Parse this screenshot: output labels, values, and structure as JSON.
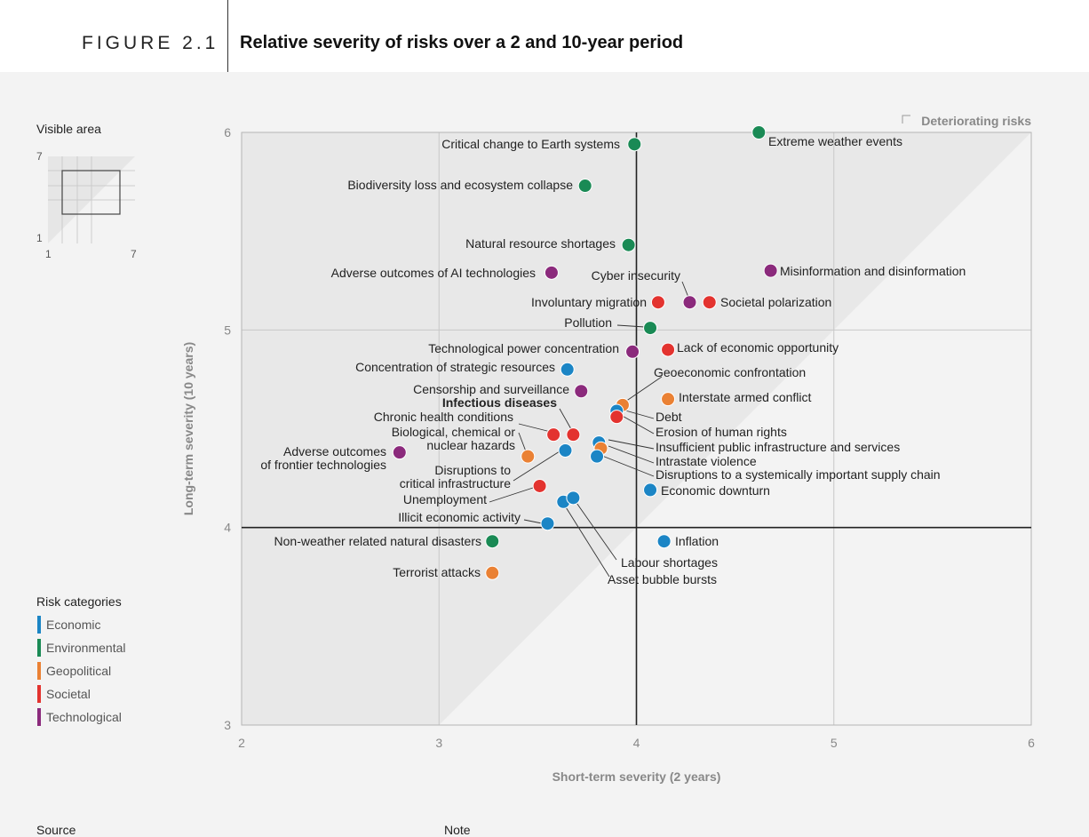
{
  "header": {
    "figure_label": "FIGURE 2.1",
    "title": "Relative severity of risks over a 2 and 10-year period"
  },
  "visible_area": {
    "title": "Visible area",
    "y_max": "7",
    "y_min": "1",
    "x_min": "1",
    "x_max": "7"
  },
  "legend": {
    "title": "Risk categories",
    "items": [
      {
        "label": "Economic",
        "color": "#1b85c5"
      },
      {
        "label": "Environmental",
        "color": "#1a8a55"
      },
      {
        "label": "Geopolitical",
        "color": "#ea8134"
      },
      {
        "label": "Societal",
        "color": "#e3332f"
      },
      {
        "label": "Technological",
        "color": "#8b2a7c"
      }
    ]
  },
  "footer": {
    "source_label": "Source",
    "note_label": "Note"
  },
  "chart_data": {
    "type": "scatter",
    "xlabel": "Short-term severity (2 years)",
    "ylabel": "Long-term severity (10 years)",
    "xlim": [
      2,
      6
    ],
    "ylim": [
      3,
      6
    ],
    "xticks": [
      "2",
      "3",
      "4",
      "5",
      "6"
    ],
    "yticks": [
      "3",
      "4",
      "5",
      "6"
    ],
    "reference_lines": {
      "x": 4,
      "y": 4
    },
    "diagonal_region_label": "Deteriorating risks",
    "grid": true,
    "points": [
      {
        "label": "Extreme weather events",
        "x": 4.62,
        "y": 6.0,
        "category": "Environmental"
      },
      {
        "label": "Critical change to Earth systems",
        "x": 3.99,
        "y": 5.94,
        "category": "Environmental"
      },
      {
        "label": "Biodiversity loss and ecosystem collapse",
        "x": 3.74,
        "y": 5.73,
        "category": "Environmental"
      },
      {
        "label": "Natural resource shortages",
        "x": 3.96,
        "y": 5.43,
        "category": "Environmental"
      },
      {
        "label": "Adverse outcomes of AI technologies",
        "x": 3.57,
        "y": 5.29,
        "category": "Technological"
      },
      {
        "label": "Misinformation and disinformation",
        "x": 4.68,
        "y": 5.3,
        "category": "Technological"
      },
      {
        "label": "Cyber insecurity",
        "x": 4.27,
        "y": 5.14,
        "category": "Technological"
      },
      {
        "label": "Involuntary migration",
        "x": 4.11,
        "y": 5.14,
        "category": "Societal"
      },
      {
        "label": "Societal polarization",
        "x": 4.37,
        "y": 5.14,
        "category": "Societal"
      },
      {
        "label": "Pollution",
        "x": 4.07,
        "y": 5.01,
        "category": "Environmental"
      },
      {
        "label": "Technological power concentration",
        "x": 3.98,
        "y": 4.89,
        "category": "Technological"
      },
      {
        "label": "Lack of economic opportunity",
        "x": 4.16,
        "y": 4.9,
        "category": "Societal"
      },
      {
        "label": "Concentration of strategic resources",
        "x": 3.65,
        "y": 4.8,
        "category": "Economic"
      },
      {
        "label": "Geoeconomic confrontation",
        "x": 3.93,
        "y": 4.62,
        "category": "Geopolitical"
      },
      {
        "label": "Censorship and surveillance",
        "x": 3.72,
        "y": 4.69,
        "category": "Technological"
      },
      {
        "label": "Interstate armed conflict",
        "x": 4.16,
        "y": 4.65,
        "category": "Geopolitical"
      },
      {
        "label": "Infectious diseases",
        "x": 3.68,
        "y": 4.47,
        "category": "Societal"
      },
      {
        "label": "Debt",
        "x": 3.9,
        "y": 4.59,
        "category": "Economic"
      },
      {
        "label": "Chronic health conditions",
        "x": 3.58,
        "y": 4.47,
        "category": "Societal"
      },
      {
        "label": "Erosion of human rights",
        "x": 3.9,
        "y": 4.56,
        "category": "Societal"
      },
      {
        "label": "Biological, chemical or nuclear hazards",
        "x": 3.45,
        "y": 4.36,
        "category": "Geopolitical"
      },
      {
        "label": "Adverse outcomes of frontier technologies",
        "x": 2.8,
        "y": 4.38,
        "category": "Technological"
      },
      {
        "label": "Insufficient public infrastructure and services",
        "x": 3.81,
        "y": 4.43,
        "category": "Economic"
      },
      {
        "label": "Intrastate violence",
        "x": 3.82,
        "y": 4.4,
        "category": "Geopolitical"
      },
      {
        "label": "Disruptions to critical infrastructure",
        "x": 3.64,
        "y": 4.39,
        "category": "Economic"
      },
      {
        "label": "Disruptions to a systemically important supply chain",
        "x": 3.8,
        "y": 4.36,
        "category": "Economic"
      },
      {
        "label": "Economic downturn",
        "x": 4.07,
        "y": 4.19,
        "category": "Economic"
      },
      {
        "label": "Unemployment",
        "x": 3.51,
        "y": 4.21,
        "category": "Societal"
      },
      {
        "label": "Labour shortages",
        "x": 3.63,
        "y": 4.13,
        "category": "Economic"
      },
      {
        "label": "Asset bubble bursts",
        "x": 3.68,
        "y": 4.15,
        "category": "Economic"
      },
      {
        "label": "Illicit economic activity",
        "x": 3.55,
        "y": 4.02,
        "category": "Economic"
      },
      {
        "label": "Non-weather related natural disasters",
        "x": 3.27,
        "y": 3.93,
        "category": "Environmental"
      },
      {
        "label": "Inflation",
        "x": 4.14,
        "y": 3.93,
        "category": "Economic"
      },
      {
        "label": "Terrorist attacks",
        "x": 3.27,
        "y": 3.77,
        "category": "Geopolitical"
      }
    ]
  }
}
